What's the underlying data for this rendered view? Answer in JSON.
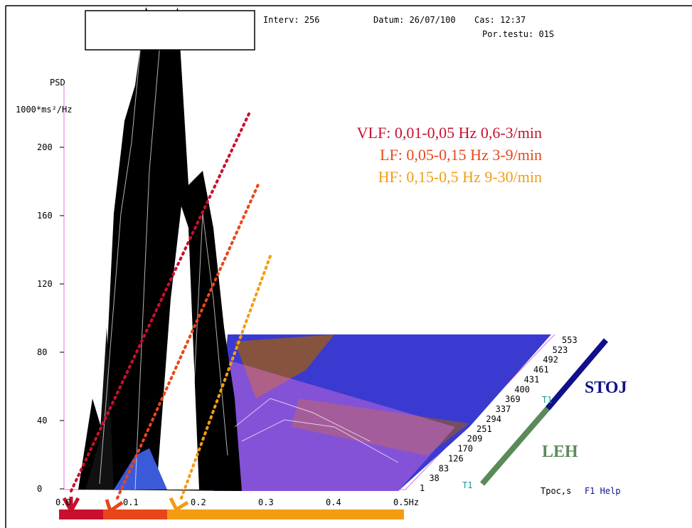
{
  "header": {
    "interval": "Interv: 256",
    "date": "Datum: 26/07/100",
    "time": "Cas:  12:37",
    "test": "Por.testu: 01S"
  },
  "y_axis": {
    "label": "PSD",
    "unit": "1000*ms²/Hz",
    "ticks": [
      "200",
      "160",
      "120",
      "80",
      "40",
      "0"
    ]
  },
  "x_axis": {
    "ticks": [
      "0.0",
      "0.1",
      "0.2",
      "0.3",
      "0.4",
      "0.5Hz"
    ]
  },
  "time_axis": {
    "ticks": [
      "553",
      "523",
      "492",
      "461",
      "431",
      "400",
      "369",
      "337",
      "294",
      "251",
      "209",
      "170",
      "126",
      "83",
      "38",
      "1"
    ],
    "label": "Tpoc,s",
    "markers": [
      "T1",
      "T1"
    ]
  },
  "bands": [
    {
      "text": "VLF: 0,01-0,05 Hz  0,6-3/min",
      "color": "#c8102e"
    },
    {
      "text": "LF: 0,05-0,15 Hz     3-9/min",
      "color": "#e8461a"
    },
    {
      "text": "HF: 0,15-0,5 Hz  9-30/min",
      "color": "#f39c12"
    }
  ],
  "positions": {
    "stand": "STOJ",
    "lie": "LEH"
  },
  "help": "F1 Help"
}
